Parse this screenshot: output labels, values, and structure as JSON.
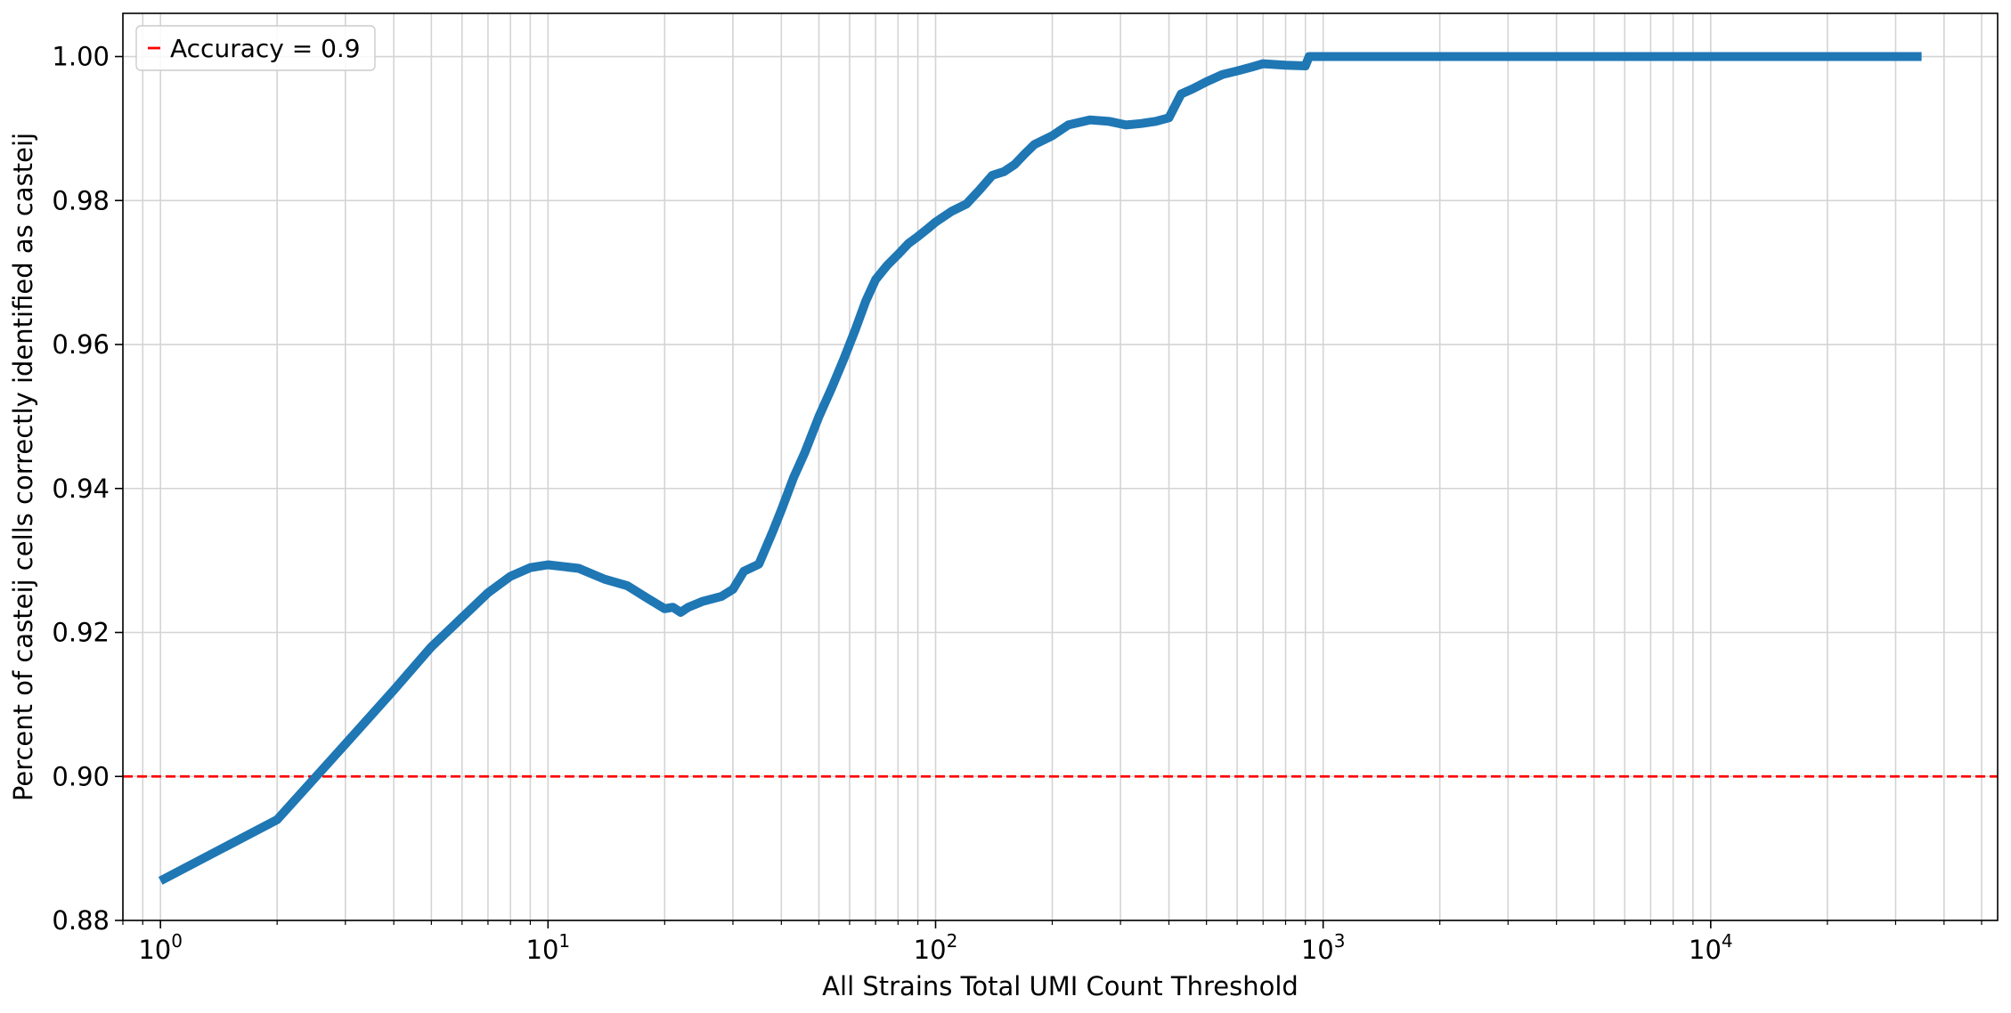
{
  "chart_data": {
    "type": "line",
    "title": "",
    "xlabel": "All Strains Total UMI Count Threshold",
    "ylabel": "Percent of casteij cells correctly identified as casteij",
    "xscale": "log",
    "xlim": [
      0.8,
      55000
    ],
    "ylim": [
      0.88,
      1.006
    ],
    "grid": "on (major and minor)",
    "legend_position": "top-left",
    "x_ticks": [
      1,
      10,
      100,
      1000,
      10000
    ],
    "x_tick_labels": [
      {
        "base": "10",
        "exp": "0"
      },
      {
        "base": "10",
        "exp": "1"
      },
      {
        "base": "10",
        "exp": "2"
      },
      {
        "base": "10",
        "exp": "3"
      },
      {
        "base": "10",
        "exp": "4"
      }
    ],
    "y_ticks": [
      0.88,
      0.9,
      0.92,
      0.94,
      0.96,
      0.98,
      1.0
    ],
    "y_tick_labels": [
      "0.88",
      "0.90",
      "0.92",
      "0.94",
      "0.96",
      "0.98",
      "1.00"
    ],
    "series": [
      {
        "color": "#1f77b4",
        "x": [
          1,
          2,
          3,
          4,
          5,
          7,
          8,
          9,
          10,
          12,
          14,
          16,
          18,
          20,
          21,
          22,
          23,
          25,
          28,
          30,
          32,
          35,
          38,
          40,
          43,
          46,
          50,
          54,
          58,
          62,
          66,
          70,
          75,
          80,
          85,
          90,
          95,
          100,
          110,
          120,
          130,
          140,
          150,
          160,
          170,
          180,
          200,
          220,
          250,
          280,
          310,
          340,
          370,
          400,
          430,
          460,
          500,
          550,
          600,
          650,
          700,
          800,
          900,
          920,
          1000,
          2000,
          5000,
          10000,
          20000,
          35000
        ],
        "y": [
          0.8855,
          0.894,
          0.9045,
          0.912,
          0.918,
          0.9255,
          0.9278,
          0.929,
          0.9294,
          0.9289,
          0.9274,
          0.9265,
          0.9248,
          0.9233,
          0.9235,
          0.9228,
          0.9235,
          0.9243,
          0.925,
          0.926,
          0.9285,
          0.9295,
          0.934,
          0.937,
          0.9415,
          0.945,
          0.95,
          0.954,
          0.958,
          0.962,
          0.966,
          0.969,
          0.971,
          0.9725,
          0.974,
          0.975,
          0.976,
          0.977,
          0.9785,
          0.9795,
          0.9815,
          0.9835,
          0.984,
          0.985,
          0.9865,
          0.9878,
          0.989,
          0.9905,
          0.9912,
          0.991,
          0.9905,
          0.9907,
          0.991,
          0.9915,
          0.9948,
          0.9955,
          0.9965,
          0.9975,
          0.998,
          0.9985,
          0.999,
          0.9988,
          0.9987,
          1.0,
          1.0,
          1.0,
          1.0,
          1.0,
          1.0,
          1.0
        ]
      },
      {
        "name": "Accuracy = 0.9",
        "color": "#ff0000",
        "style": "dashed",
        "y_constant": 0.9
      }
    ]
  }
}
